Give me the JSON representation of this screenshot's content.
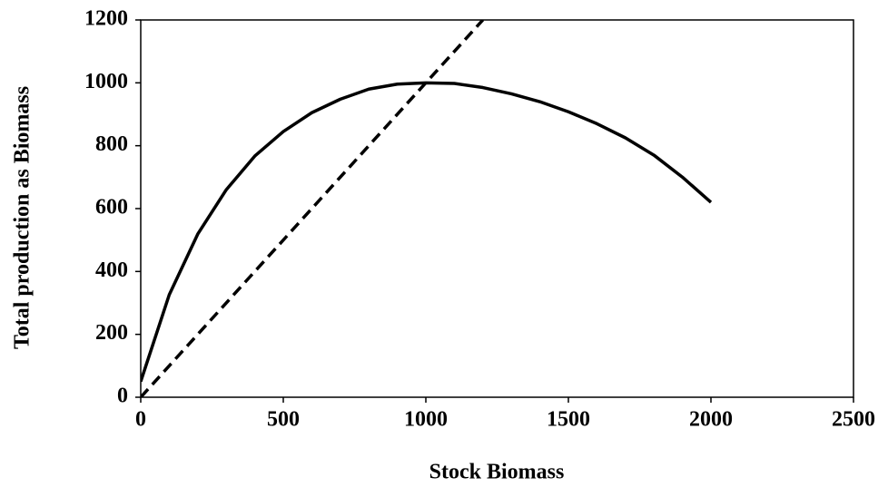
{
  "chart_data": {
    "type": "line",
    "xlabel": "Stock Biomass",
    "ylabel": "Total production as Biomass",
    "series": [
      {
        "color": "#000000",
        "dash": false,
        "x": [
          0,
          100,
          200,
          300,
          400,
          500,
          600,
          700,
          800,
          900,
          1000,
          1100,
          1200,
          1300,
          1400,
          1500,
          1600,
          1700,
          1800,
          1900,
          2000
        ],
        "values": [
          50,
          326,
          519,
          660,
          767,
          845,
          905,
          948,
          980,
          996,
          1000,
          998,
          985,
          965,
          940,
          908,
          870,
          825,
          770,
          700,
          620
        ]
      },
      {
        "color": "#000000",
        "dash": true,
        "x": [
          0,
          1200
        ],
        "values": [
          0,
          1200
        ]
      }
    ],
    "xlim": [
      0,
      2500
    ],
    "xticks": [
      0,
      500,
      1000,
      1500,
      2000,
      2500
    ],
    "ylim": [
      0,
      1200
    ],
    "yticks": [
      0,
      200,
      400,
      600,
      800,
      1000,
      1200
    ],
    "grid": false
  }
}
